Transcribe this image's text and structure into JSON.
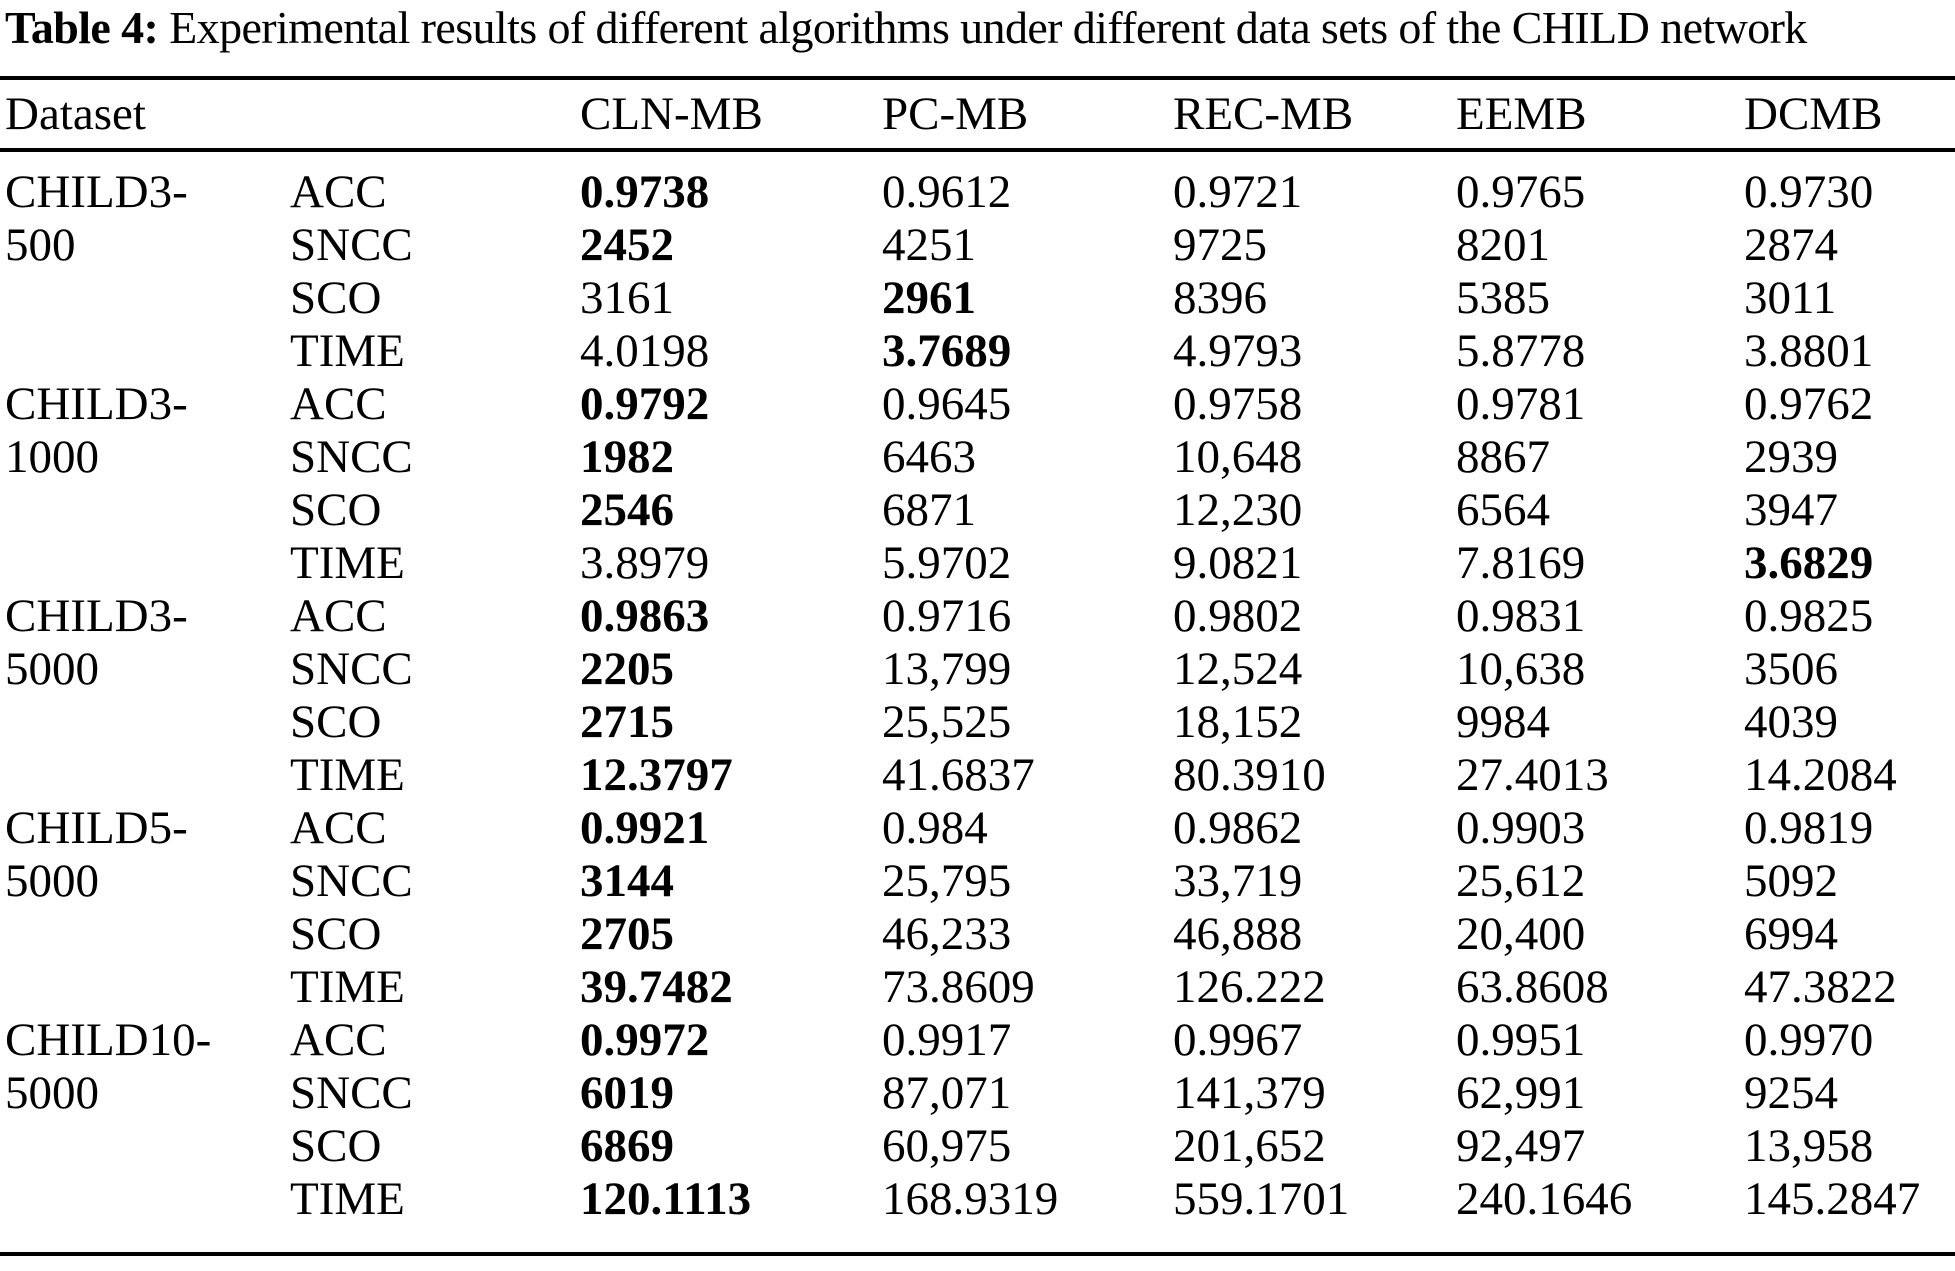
{
  "title": {
    "label": "Table 4:",
    "text": " Experimental results of different algorithms under different data sets of the CHILD network"
  },
  "table": {
    "columns": [
      "Dataset",
      "",
      "CLN-MB",
      "PC-MB",
      "REC-MB",
      "EEMB",
      "DCMB"
    ],
    "groups": [
      {
        "dataset": [
          "CHILD3-",
          "500"
        ],
        "rows": [
          {
            "metric": "ACC",
            "values": [
              "0.9738",
              "0.9612",
              "0.9721",
              "0.9765",
              "0.9730"
            ],
            "bold": [
              true,
              false,
              false,
              false,
              false
            ]
          },
          {
            "metric": "SNCC",
            "values": [
              "2452",
              "4251",
              "9725",
              "8201",
              "2874"
            ],
            "bold": [
              true,
              false,
              false,
              false,
              false
            ]
          },
          {
            "metric": "SCO",
            "values": [
              "3161",
              "2961",
              "8396",
              "5385",
              "3011"
            ],
            "bold": [
              false,
              true,
              false,
              false,
              false
            ]
          },
          {
            "metric": "TIME",
            "values": [
              "4.0198",
              "3.7689",
              "4.9793",
              "5.8778",
              "3.8801"
            ],
            "bold": [
              false,
              true,
              false,
              false,
              false
            ]
          }
        ]
      },
      {
        "dataset": [
          "CHILD3-",
          "1000"
        ],
        "rows": [
          {
            "metric": "ACC",
            "values": [
              "0.9792",
              "0.9645",
              "0.9758",
              "0.9781",
              "0.9762"
            ],
            "bold": [
              true,
              false,
              false,
              false,
              false
            ]
          },
          {
            "metric": "SNCC",
            "values": [
              "1982",
              "6463",
              "10,648",
              "8867",
              "2939"
            ],
            "bold": [
              true,
              false,
              false,
              false,
              false
            ]
          },
          {
            "metric": "SCO",
            "values": [
              "2546",
              "6871",
              "12,230",
              "6564",
              "3947"
            ],
            "bold": [
              true,
              false,
              false,
              false,
              false
            ]
          },
          {
            "metric": "TIME",
            "values": [
              "3.8979",
              "5.9702",
              "9.0821",
              "7.8169",
              "3.6829"
            ],
            "bold": [
              false,
              false,
              false,
              false,
              true
            ]
          }
        ]
      },
      {
        "dataset": [
          "CHILD3-",
          "5000"
        ],
        "rows": [
          {
            "metric": "ACC",
            "values": [
              "0.9863",
              "0.9716",
              "0.9802",
              "0.9831",
              "0.9825"
            ],
            "bold": [
              true,
              false,
              false,
              false,
              false
            ]
          },
          {
            "metric": "SNCC",
            "values": [
              "2205",
              "13,799",
              "12,524",
              "10,638",
              "3506"
            ],
            "bold": [
              true,
              false,
              false,
              false,
              false
            ]
          },
          {
            "metric": "SCO",
            "values": [
              "2715",
              "25,525",
              "18,152",
              "9984",
              "4039"
            ],
            "bold": [
              true,
              false,
              false,
              false,
              false
            ]
          },
          {
            "metric": "TIME",
            "values": [
              "12.3797",
              "41.6837",
              "80.3910",
              "27.4013",
              "14.2084"
            ],
            "bold": [
              true,
              false,
              false,
              false,
              false
            ]
          }
        ]
      },
      {
        "dataset": [
          "CHILD5-",
          "5000"
        ],
        "rows": [
          {
            "metric": "ACC",
            "values": [
              "0.9921",
              "0.984",
              "0.9862",
              "0.9903",
              "0.9819"
            ],
            "bold": [
              true,
              false,
              false,
              false,
              false
            ]
          },
          {
            "metric": "SNCC",
            "values": [
              "3144",
              "25,795",
              "33,719",
              "25,612",
              "5092"
            ],
            "bold": [
              true,
              false,
              false,
              false,
              false
            ]
          },
          {
            "metric": "SCO",
            "values": [
              "2705",
              "46,233",
              "46,888",
              "20,400",
              "6994"
            ],
            "bold": [
              true,
              false,
              false,
              false,
              false
            ]
          },
          {
            "metric": "TIME",
            "values": [
              "39.7482",
              "73.8609",
              "126.222",
              "63.8608",
              "47.3822"
            ],
            "bold": [
              true,
              false,
              false,
              false,
              false
            ]
          }
        ]
      },
      {
        "dataset": [
          "CHILD10-",
          "5000"
        ],
        "rows": [
          {
            "metric": "ACC",
            "values": [
              "0.9972",
              "0.9917",
              "0.9967",
              "0.9951",
              "0.9970"
            ],
            "bold": [
              true,
              false,
              false,
              false,
              false
            ]
          },
          {
            "metric": "SNCC",
            "values": [
              "6019",
              "87,071",
              "141,379",
              "62,991",
              "9254"
            ],
            "bold": [
              true,
              false,
              false,
              false,
              false
            ]
          },
          {
            "metric": "SCO",
            "values": [
              "6869",
              "60,975",
              "201,652",
              "92,497",
              "13,958"
            ],
            "bold": [
              true,
              false,
              false,
              false,
              false
            ]
          },
          {
            "metric": "TIME",
            "values": [
              "120.1113",
              "168.9319",
              "559.1701",
              "240.1646",
              "145.2847"
            ],
            "bold": [
              true,
              false,
              false,
              false,
              false
            ]
          }
        ]
      }
    ]
  }
}
